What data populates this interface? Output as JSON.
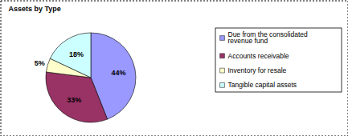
{
  "chart_data": {
    "type": "pie",
    "title": "Assets by Type",
    "categories": [
      "Due from the consolidated revenue fund",
      "Accounts receivable",
      "Inventory for resale",
      "Tangible capital assets"
    ],
    "values": [
      44,
      33,
      5,
      18
    ],
    "value_labels": [
      "44%",
      "33%",
      "5%",
      "18%"
    ],
    "colors": [
      "#9999ff",
      "#993366",
      "#ffffcc",
      "#ccffff"
    ],
    "data_labels": true,
    "legend": "right"
  }
}
